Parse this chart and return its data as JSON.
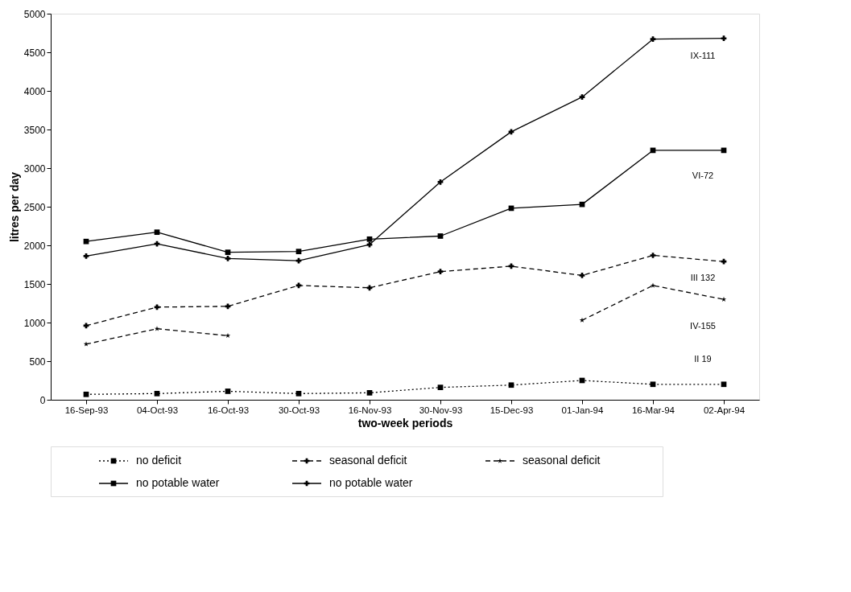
{
  "chart_data": {
    "type": "line",
    "xlabel": "two-week periods",
    "ylabel": "litres per day",
    "categories": [
      "16-Sep-93",
      "04-Oct-93",
      "16-Oct-93",
      "30-Oct-93",
      "16-Nov-93",
      "30-Nov-93",
      "15-Dec-93",
      "01-Jan-94",
      "16-Mar-94",
      "02-Apr-94"
    ],
    "ylim": [
      0,
      5000
    ],
    "yticks": [
      0,
      500,
      1000,
      1500,
      2000,
      2500,
      3000,
      3500,
      4000,
      4500,
      5000
    ],
    "grid": false,
    "legend": "bottom",
    "series": [
      {
        "name": "no deficit",
        "color": "#000000",
        "marker": "square",
        "line_style": "dotted",
        "values": [
          70,
          80,
          110,
          80,
          90,
          160,
          190,
          250,
          200,
          200
        ]
      },
      {
        "name": "seasonal deficit",
        "color": "#000000",
        "marker": "cross",
        "line_style": "dashed",
        "values": [
          960,
          1200,
          1210,
          1480,
          1450,
          1660,
          1730,
          1610,
          1870,
          1790
        ]
      },
      {
        "name": "seasonal deficit",
        "color": "#000000",
        "marker": "star",
        "line_style": "dashed",
        "values": [
          720,
          920,
          830,
          null,
          null,
          null,
          null,
          1030,
          1480,
          1300
        ]
      },
      {
        "name": "no potable water",
        "color": "#000000",
        "marker": "square",
        "line_style": "solid",
        "values": [
          2050,
          2170,
          1910,
          1920,
          2080,
          2120,
          2480,
          2530,
          3230,
          3230
        ]
      },
      {
        "name": "no potable water",
        "color": "#000000",
        "marker": "cross",
        "line_style": "solid",
        "values": [
          1860,
          2020,
          1830,
          1800,
          2010,
          2820,
          3470,
          3920,
          4670,
          4680
        ]
      }
    ],
    "annotations": [
      "IX-111",
      "VI-72",
      "III 132",
      "IV-155",
      "II 19"
    ]
  }
}
